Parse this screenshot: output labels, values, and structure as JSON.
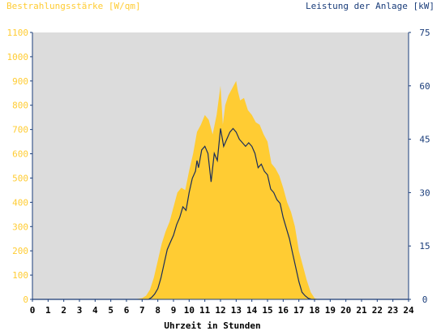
{
  "chart_data": {
    "type": "area",
    "title_left": "Bestrahlungsstärke [W/qm]",
    "title_right": "Leistung der Anlage [kW]",
    "xlabel": "Uhrzeit in Stunden",
    "x_ticks": [
      "0",
      "1",
      "2",
      "3",
      "4",
      "5",
      "6",
      "7",
      "8",
      "9",
      "10",
      "11",
      "12",
      "13",
      "14",
      "15",
      "16",
      "17",
      "18",
      "19",
      "20",
      "21",
      "22",
      "23",
      "24"
    ],
    "xlim": [
      0,
      24
    ],
    "y_left": {
      "ticks": [
        "0",
        "100",
        "200",
        "300",
        "400",
        "500",
        "600",
        "700",
        "800",
        "900",
        "1000",
        "1100"
      ],
      "ylim": [
        0,
        1100
      ]
    },
    "y_right": {
      "ticks": [
        "0",
        "15",
        "30",
        "45",
        "60",
        "75"
      ],
      "ylim": [
        0,
        75
      ]
    },
    "grid": false,
    "colors": {
      "plot_bg": "#dcdcdc",
      "irradiance": "#ffcc33",
      "power": "#1a2d5a",
      "left_axis_text": "#ffcc33",
      "right_axis_text": "#1a3d7a",
      "axis": "#1a3d7a"
    },
    "series": [
      {
        "name": "Bestrahlungsstärke [W/qm]",
        "axis": "left",
        "kind": "area",
        "x": [
          0,
          6.5,
          7,
          7.25,
          7.5,
          7.75,
          8,
          8.25,
          8.5,
          8.75,
          9,
          9.25,
          9.5,
          9.75,
          10,
          10.25,
          10.5,
          10.75,
          11,
          11.25,
          11.5,
          11.75,
          12,
          12.15,
          12.3,
          12.5,
          12.75,
          13,
          13.1,
          13.25,
          13.5,
          13.75,
          14,
          14.25,
          14.5,
          14.75,
          15,
          15.25,
          15.5,
          15.75,
          16,
          16.25,
          16.5,
          16.75,
          17,
          17.25,
          17.5,
          17.75,
          18,
          18.25,
          24
        ],
        "y": [
          0,
          0,
          5,
          15,
          40,
          90,
          160,
          230,
          280,
          320,
          380,
          440,
          460,
          450,
          530,
          600,
          690,
          720,
          760,
          740,
          680,
          760,
          880,
          720,
          800,
          840,
          870,
          900,
          860,
          820,
          830,
          780,
          760,
          730,
          720,
          680,
          650,
          560,
          540,
          510,
          460,
          400,
          360,
          300,
          200,
          140,
          80,
          30,
          5,
          0,
          0
        ]
      },
      {
        "name": "Leistung der Anlage [kW]",
        "axis": "right",
        "kind": "line",
        "x": [
          0,
          7.4,
          7.6,
          7.8,
          8,
          8.2,
          8.4,
          8.6,
          8.8,
          9,
          9.2,
          9.4,
          9.6,
          9.8,
          10,
          10.2,
          10.4,
          10.5,
          10.6,
          10.8,
          11,
          11.2,
          11.4,
          11.6,
          11.8,
          12,
          12.2,
          12.4,
          12.6,
          12.8,
          13,
          13.2,
          13.4,
          13.6,
          13.8,
          14,
          14.2,
          14.4,
          14.6,
          14.8,
          15,
          15.2,
          15.4,
          15.6,
          15.8,
          16,
          16.2,
          16.4,
          16.6,
          16.8,
          17,
          17.2,
          17.4,
          17.6,
          17.8,
          18,
          24
        ],
        "y": [
          0,
          0,
          0.5,
          1.5,
          3,
          6,
          10,
          14,
          16,
          18,
          21,
          23,
          26,
          25,
          30,
          34,
          36,
          39,
          37,
          42,
          43,
          41,
          33,
          41,
          39,
          48,
          43,
          45,
          47,
          48,
          47,
          45,
          44,
          43,
          44,
          43,
          41,
          37,
          38,
          36,
          35,
          31,
          30,
          28,
          27,
          23,
          20,
          17,
          13,
          9,
          5,
          2,
          1,
          0.3,
          0,
          0,
          0
        ]
      }
    ]
  }
}
